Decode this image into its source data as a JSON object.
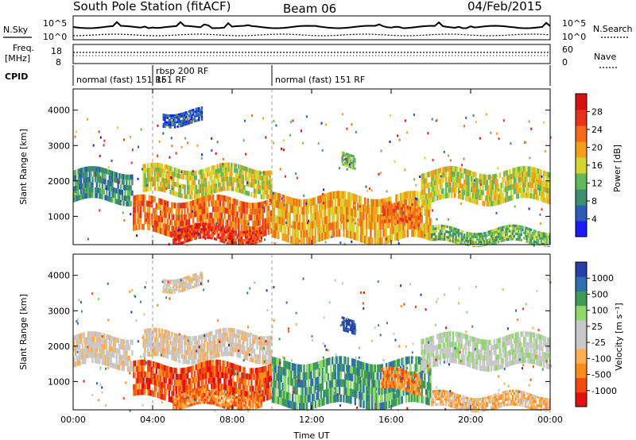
{
  "header": {
    "station": "South Pole Station (fitACF)",
    "beam": "Beam 06",
    "date": "04/Feb/2015"
  },
  "noise_panel": {
    "left_label": "N.Sky",
    "right_label": "N.Search",
    "ticks_left": [
      "10^5",
      "10^0"
    ],
    "ticks_right": [
      "10^5",
      "10^0"
    ]
  },
  "freq_panel": {
    "label_line1": "Freq.",
    "label_line2": "[MHz]",
    "ticks_left": [
      "18",
      "8"
    ],
    "right_label": "Nave",
    "ticks_right": [
      "60",
      "0"
    ]
  },
  "cpid": {
    "label": "CPID",
    "segments": [
      {
        "label": "normal (fast) 151 RF",
        "start_h": 0
      },
      {
        "label": "rbsp 200 RF",
        "start_h": 4
      },
      {
        "label": "normal (fast) 151 RF",
        "start_h": 10
      }
    ],
    "overlap_text": "151 RF"
  },
  "colors": {
    "power": [
      "#1a1aff",
      "#2a5cb8",
      "#3a8f6e",
      "#63b85a",
      "#d6d431",
      "#f2a01b",
      "#f26b1b",
      "#e8301e",
      "#d81010"
    ],
    "velocity": [
      "#e21010",
      "#f04a10",
      "#ff8c1a",
      "#ffae55",
      "#c8c8c8",
      "#c8c8c8",
      "#8fd86a",
      "#3f9a5a",
      "#2f6fae",
      "#2640a8"
    ]
  },
  "chart_data": [
    {
      "type": "heatmap",
      "name": "power",
      "ylabel": "Slant Range [km]",
      "ylim": [
        200,
        4600
      ],
      "yticks": [
        "4000",
        "3000",
        "2000",
        "1000"
      ],
      "xlim": [
        0,
        24
      ],
      "colorbar": {
        "label": "Power [dB]",
        "ticks": [
          "28",
          "24",
          "20",
          "16",
          "12",
          "8",
          "4"
        ]
      },
      "bands": [
        {
          "start_h": 0.0,
          "end_h": 3.0,
          "r0": 1400,
          "r1": 2300,
          "level": 2
        },
        {
          "start_h": 3.5,
          "end_h": 10.0,
          "r0": 1600,
          "r1": 2400,
          "level": 4
        },
        {
          "start_h": 3.0,
          "end_h": 10.0,
          "r0": 500,
          "r1": 1500,
          "level": 6
        },
        {
          "start_h": 5.0,
          "end_h": 9.5,
          "r0": 250,
          "r1": 700,
          "level": 7
        },
        {
          "start_h": 10.0,
          "end_h": 18.0,
          "r0": 300,
          "r1": 1600,
          "level": 5
        },
        {
          "start_h": 13.5,
          "end_h": 14.2,
          "r0": 2400,
          "r1": 2800,
          "level": 3
        },
        {
          "start_h": 15.5,
          "end_h": 17.5,
          "r0": 700,
          "r1": 1300,
          "level": 6
        },
        {
          "start_h": 17.5,
          "end_h": 24.0,
          "r0": 1400,
          "r1": 2300,
          "level": 4
        },
        {
          "start_h": 18.0,
          "end_h": 24.0,
          "r0": 200,
          "r1": 650,
          "level": 3
        },
        {
          "start_h": 4.5,
          "end_h": 6.5,
          "r0": 3600,
          "r1": 4000,
          "level": 1
        }
      ]
    },
    {
      "type": "heatmap",
      "name": "velocity",
      "ylabel": "Slant Range [km]",
      "xlabel": "Time UT",
      "ylim": [
        200,
        4600
      ],
      "yticks": [
        "4000",
        "3000",
        "2000",
        "1000"
      ],
      "xlim": [
        0,
        24
      ],
      "xticks": [
        "00:00",
        "04:00",
        "08:00",
        "12:00",
        "16:00",
        "20:00",
        "00:00"
      ],
      "colorbar": {
        "label": "Velocity [m s⁻¹]",
        "ticks": [
          "1000",
          "500",
          "100",
          "25",
          "-25",
          "-100",
          "-500",
          "-1000"
        ]
      },
      "bands": [
        {
          "start_h": 0.0,
          "end_h": 3.0,
          "r0": 1400,
          "r1": 2300,
          "level": 4
        },
        {
          "start_h": 3.5,
          "end_h": 10.0,
          "r0": 1600,
          "r1": 2400,
          "level": 4
        },
        {
          "start_h": 3.0,
          "end_h": 10.0,
          "r0": 500,
          "r1": 1500,
          "level": 1
        },
        {
          "start_h": 5.0,
          "end_h": 9.5,
          "r0": 250,
          "r1": 700,
          "level": 2
        },
        {
          "start_h": 10.0,
          "end_h": 18.0,
          "r0": 300,
          "r1": 1600,
          "level": 7
        },
        {
          "start_h": 13.5,
          "end_h": 14.2,
          "r0": 2400,
          "r1": 2800,
          "level": 9
        },
        {
          "start_h": 15.5,
          "end_h": 17.5,
          "r0": 700,
          "r1": 1300,
          "level": 2
        },
        {
          "start_h": 17.5,
          "end_h": 24.0,
          "r0": 1400,
          "r1": 2300,
          "level": 5
        },
        {
          "start_h": 18.0,
          "end_h": 24.0,
          "r0": 200,
          "r1": 650,
          "level": 3
        },
        {
          "start_h": 4.5,
          "end_h": 6.5,
          "r0": 3600,
          "r1": 4000,
          "level": 4
        }
      ]
    }
  ]
}
